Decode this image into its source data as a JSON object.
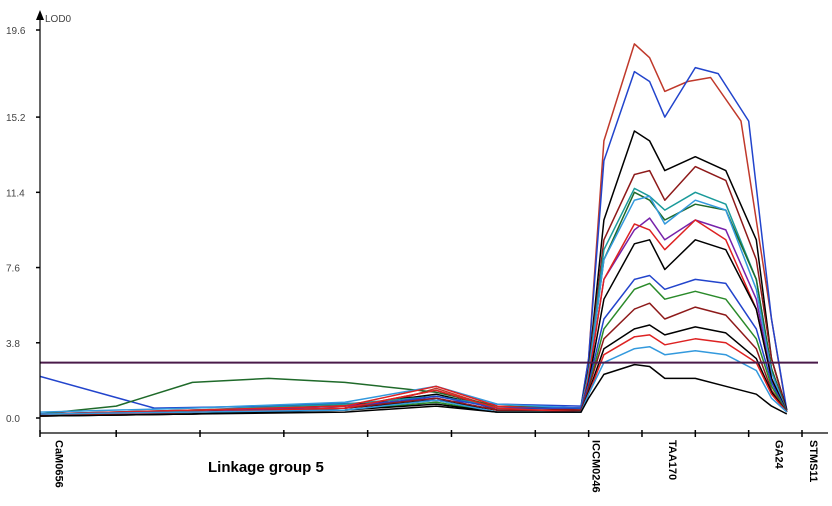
{
  "chart_data": {
    "type": "line",
    "ylabel": "LOD0",
    "ylim": [
      0,
      19.6
    ],
    "yticks": [
      "0.0",
      "3.8",
      "7.6",
      "11.4",
      "15.2",
      "19.6"
    ],
    "threshold": 2.8,
    "xlim": [
      0,
      100
    ],
    "group_label": "Linkage group 5",
    "markers": [
      {
        "label": "CaM0656",
        "x": 1.5
      },
      {
        "label": "ICCM0246",
        "x": 72.0
      },
      {
        "label": "TAA170",
        "x": 82.0
      },
      {
        "label": "GA24",
        "x": 96.0
      },
      {
        "label": "STMS11",
        "x": 100.5
      }
    ],
    "series": [
      {
        "color": "#c0392b",
        "peak": 18.9,
        "x": [
          0,
          15,
          30,
          45,
          52,
          60,
          71,
          72,
          74,
          78,
          80,
          82,
          85,
          88,
          92,
          96,
          98
        ],
        "y": [
          0.2,
          0.3,
          0.5,
          0.7,
          1.5,
          0.5,
          0.5,
          3.0,
          14,
          18.9,
          18.2,
          16.5,
          17.0,
          17.2,
          15,
          5,
          0.3
        ]
      },
      {
        "color": "#2244cc",
        "peak": 17.7,
        "x": [
          0,
          15,
          30,
          45,
          52,
          60,
          71,
          72,
          74,
          78,
          80,
          82,
          86,
          89,
          93,
          96,
          98
        ],
        "y": [
          2.1,
          0.5,
          0.6,
          0.8,
          0.9,
          0.7,
          0.6,
          3.0,
          13,
          17.5,
          17.0,
          15.2,
          17.7,
          17.4,
          15,
          5,
          0.4
        ]
      },
      {
        "color": "#000000",
        "peak": 14.5,
        "x": [
          0,
          20,
          40,
          52,
          60,
          71,
          72,
          74,
          78,
          80,
          82,
          86,
          90,
          94,
          96,
          98
        ],
        "y": [
          0.2,
          0.4,
          0.6,
          1.2,
          0.5,
          0.5,
          2.5,
          10,
          14.5,
          14.0,
          12.5,
          13.2,
          12.5,
          9,
          3,
          0.4
        ]
      },
      {
        "color": "#8e1a1a",
        "peak": 12.7,
        "x": [
          0,
          20,
          40,
          52,
          60,
          71,
          72,
          74,
          78,
          80,
          82,
          86,
          90,
          94,
          96,
          98
        ],
        "y": [
          0.1,
          0.3,
          0.5,
          1.4,
          0.4,
          0.4,
          2.4,
          9,
          12.3,
          12.5,
          11.0,
          12.7,
          12.0,
          8,
          3,
          0.3
        ]
      },
      {
        "color": "#1a9a9a",
        "peak": 11.6,
        "x": [
          0,
          20,
          40,
          52,
          60,
          71,
          72,
          74,
          78,
          80,
          82,
          86,
          90,
          94,
          96,
          98
        ],
        "y": [
          0.1,
          0.4,
          0.7,
          1.1,
          0.6,
          0.5,
          2.3,
          8.5,
          11.6,
          11.2,
          10.5,
          11.4,
          10.8,
          7,
          2.5,
          0.3
        ]
      },
      {
        "color": "#1f6a2a",
        "peak": 11.4,
        "x": [
          0,
          10,
          20,
          30,
          40,
          52,
          60,
          71,
          72,
          74,
          78,
          80,
          82,
          86,
          90,
          94,
          96,
          98
        ],
        "y": [
          0.2,
          0.6,
          1.8,
          2.0,
          1.8,
          1.3,
          0.6,
          0.5,
          2.2,
          8,
          11.4,
          11.0,
          10.0,
          10.8,
          10.5,
          7,
          2.5,
          0.3
        ]
      },
      {
        "color": "#3399dd",
        "peak": 11.2,
        "x": [
          0,
          20,
          40,
          52,
          60,
          71,
          72,
          74,
          78,
          80,
          82,
          86,
          90,
          94,
          96,
          98
        ],
        "y": [
          0.3,
          0.5,
          0.8,
          1.6,
          0.7,
          0.5,
          2.2,
          8,
          11.0,
          11.2,
          9.8,
          11.0,
          10.5,
          6.5,
          2.3,
          0.3
        ]
      },
      {
        "color": "#7722aa",
        "peak": 10.1,
        "x": [
          0,
          20,
          40,
          52,
          60,
          71,
          72,
          74,
          78,
          80,
          82,
          86,
          90,
          94,
          96,
          98
        ],
        "y": [
          0.2,
          0.3,
          0.6,
          1.0,
          0.4,
          0.4,
          2.0,
          7,
          9.5,
          10.1,
          9.0,
          10.0,
          9.5,
          6,
          2.0,
          0.3
        ]
      },
      {
        "color": "#dd2222",
        "peak": 10.0,
        "x": [
          0,
          20,
          40,
          52,
          60,
          71,
          72,
          74,
          78,
          80,
          82,
          86,
          90,
          94,
          96,
          98
        ],
        "y": [
          0.2,
          0.4,
          0.6,
          1.6,
          0.6,
          0.4,
          2.0,
          7,
          9.8,
          9.5,
          8.5,
          10.0,
          9.0,
          5.5,
          2.0,
          0.3
        ]
      },
      {
        "color": "#000000",
        "peak": 9.0,
        "x": [
          0,
          20,
          40,
          52,
          60,
          71,
          72,
          74,
          78,
          80,
          82,
          86,
          90,
          94,
          96,
          98
        ],
        "y": [
          0.1,
          0.2,
          0.5,
          0.9,
          0.4,
          0.4,
          1.8,
          6,
          8.8,
          9.0,
          7.5,
          9.0,
          8.5,
          5.5,
          2.0,
          0.3
        ]
      },
      {
        "color": "#2244cc",
        "peak": 7.2,
        "x": [
          0,
          20,
          40,
          52,
          60,
          71,
          72,
          74,
          78,
          80,
          82,
          86,
          90,
          94,
          96,
          98
        ],
        "y": [
          0.2,
          0.3,
          0.5,
          1.1,
          0.5,
          0.5,
          1.7,
          5,
          7.0,
          7.2,
          6.5,
          7.0,
          6.8,
          4.5,
          1.8,
          0.3
        ]
      },
      {
        "color": "#2a8a2a",
        "peak": 6.8,
        "x": [
          0,
          20,
          40,
          52,
          60,
          71,
          72,
          74,
          78,
          80,
          82,
          86,
          90,
          94,
          96,
          98
        ],
        "y": [
          0.1,
          0.3,
          0.4,
          0.8,
          0.3,
          0.3,
          1.5,
          4.5,
          6.5,
          6.8,
          6.0,
          6.4,
          6.0,
          4.0,
          1.6,
          0.3
        ]
      },
      {
        "color": "#8e1a1a",
        "peak": 5.8,
        "x": [
          0,
          20,
          40,
          52,
          60,
          71,
          72,
          74,
          78,
          80,
          82,
          86,
          90,
          94,
          96,
          98
        ],
        "y": [
          0.2,
          0.3,
          0.5,
          1.0,
          0.4,
          0.4,
          1.5,
          4,
          5.5,
          5.8,
          5.0,
          5.6,
          5.2,
          3.5,
          1.4,
          0.3
        ]
      },
      {
        "color": "#000000",
        "peak": 4.7,
        "x": [
          0,
          20,
          40,
          52,
          60,
          71,
          72,
          74,
          78,
          80,
          82,
          86,
          90,
          94,
          96,
          98
        ],
        "y": [
          0.1,
          0.2,
          0.4,
          0.7,
          0.3,
          0.3,
          1.3,
          3.5,
          4.5,
          4.7,
          4.2,
          4.6,
          4.3,
          3.0,
          1.3,
          0.3
        ]
      },
      {
        "color": "#dd2222",
        "peak": 4.2,
        "x": [
          0,
          20,
          40,
          52,
          60,
          71,
          72,
          74,
          78,
          80,
          82,
          86,
          90,
          94,
          96,
          98
        ],
        "y": [
          0.1,
          0.3,
          0.5,
          1.4,
          0.5,
          0.3,
          1.2,
          3.2,
          4.1,
          4.2,
          3.7,
          4.0,
          3.8,
          2.8,
          1.2,
          0.3
        ]
      },
      {
        "color": "#3399dd",
        "peak": 3.6,
        "x": [
          0,
          20,
          40,
          52,
          60,
          71,
          72,
          74,
          78,
          80,
          82,
          86,
          90,
          94,
          96,
          98
        ],
        "y": [
          0.2,
          0.3,
          0.4,
          0.9,
          0.3,
          0.3,
          1.2,
          2.8,
          3.5,
          3.6,
          3.2,
          3.4,
          3.2,
          2.4,
          1.0,
          0.3
        ]
      },
      {
        "color": "#000000",
        "peak": 2.7,
        "x": [
          0,
          20,
          40,
          52,
          60,
          71,
          72,
          74,
          78,
          80,
          82,
          86,
          90,
          94,
          96,
          98
        ],
        "y": [
          0.1,
          0.2,
          0.3,
          0.6,
          0.3,
          0.3,
          1.0,
          2.2,
          2.7,
          2.6,
          2.0,
          2.0,
          1.6,
          1.2,
          0.6,
          0.2
        ]
      }
    ]
  }
}
